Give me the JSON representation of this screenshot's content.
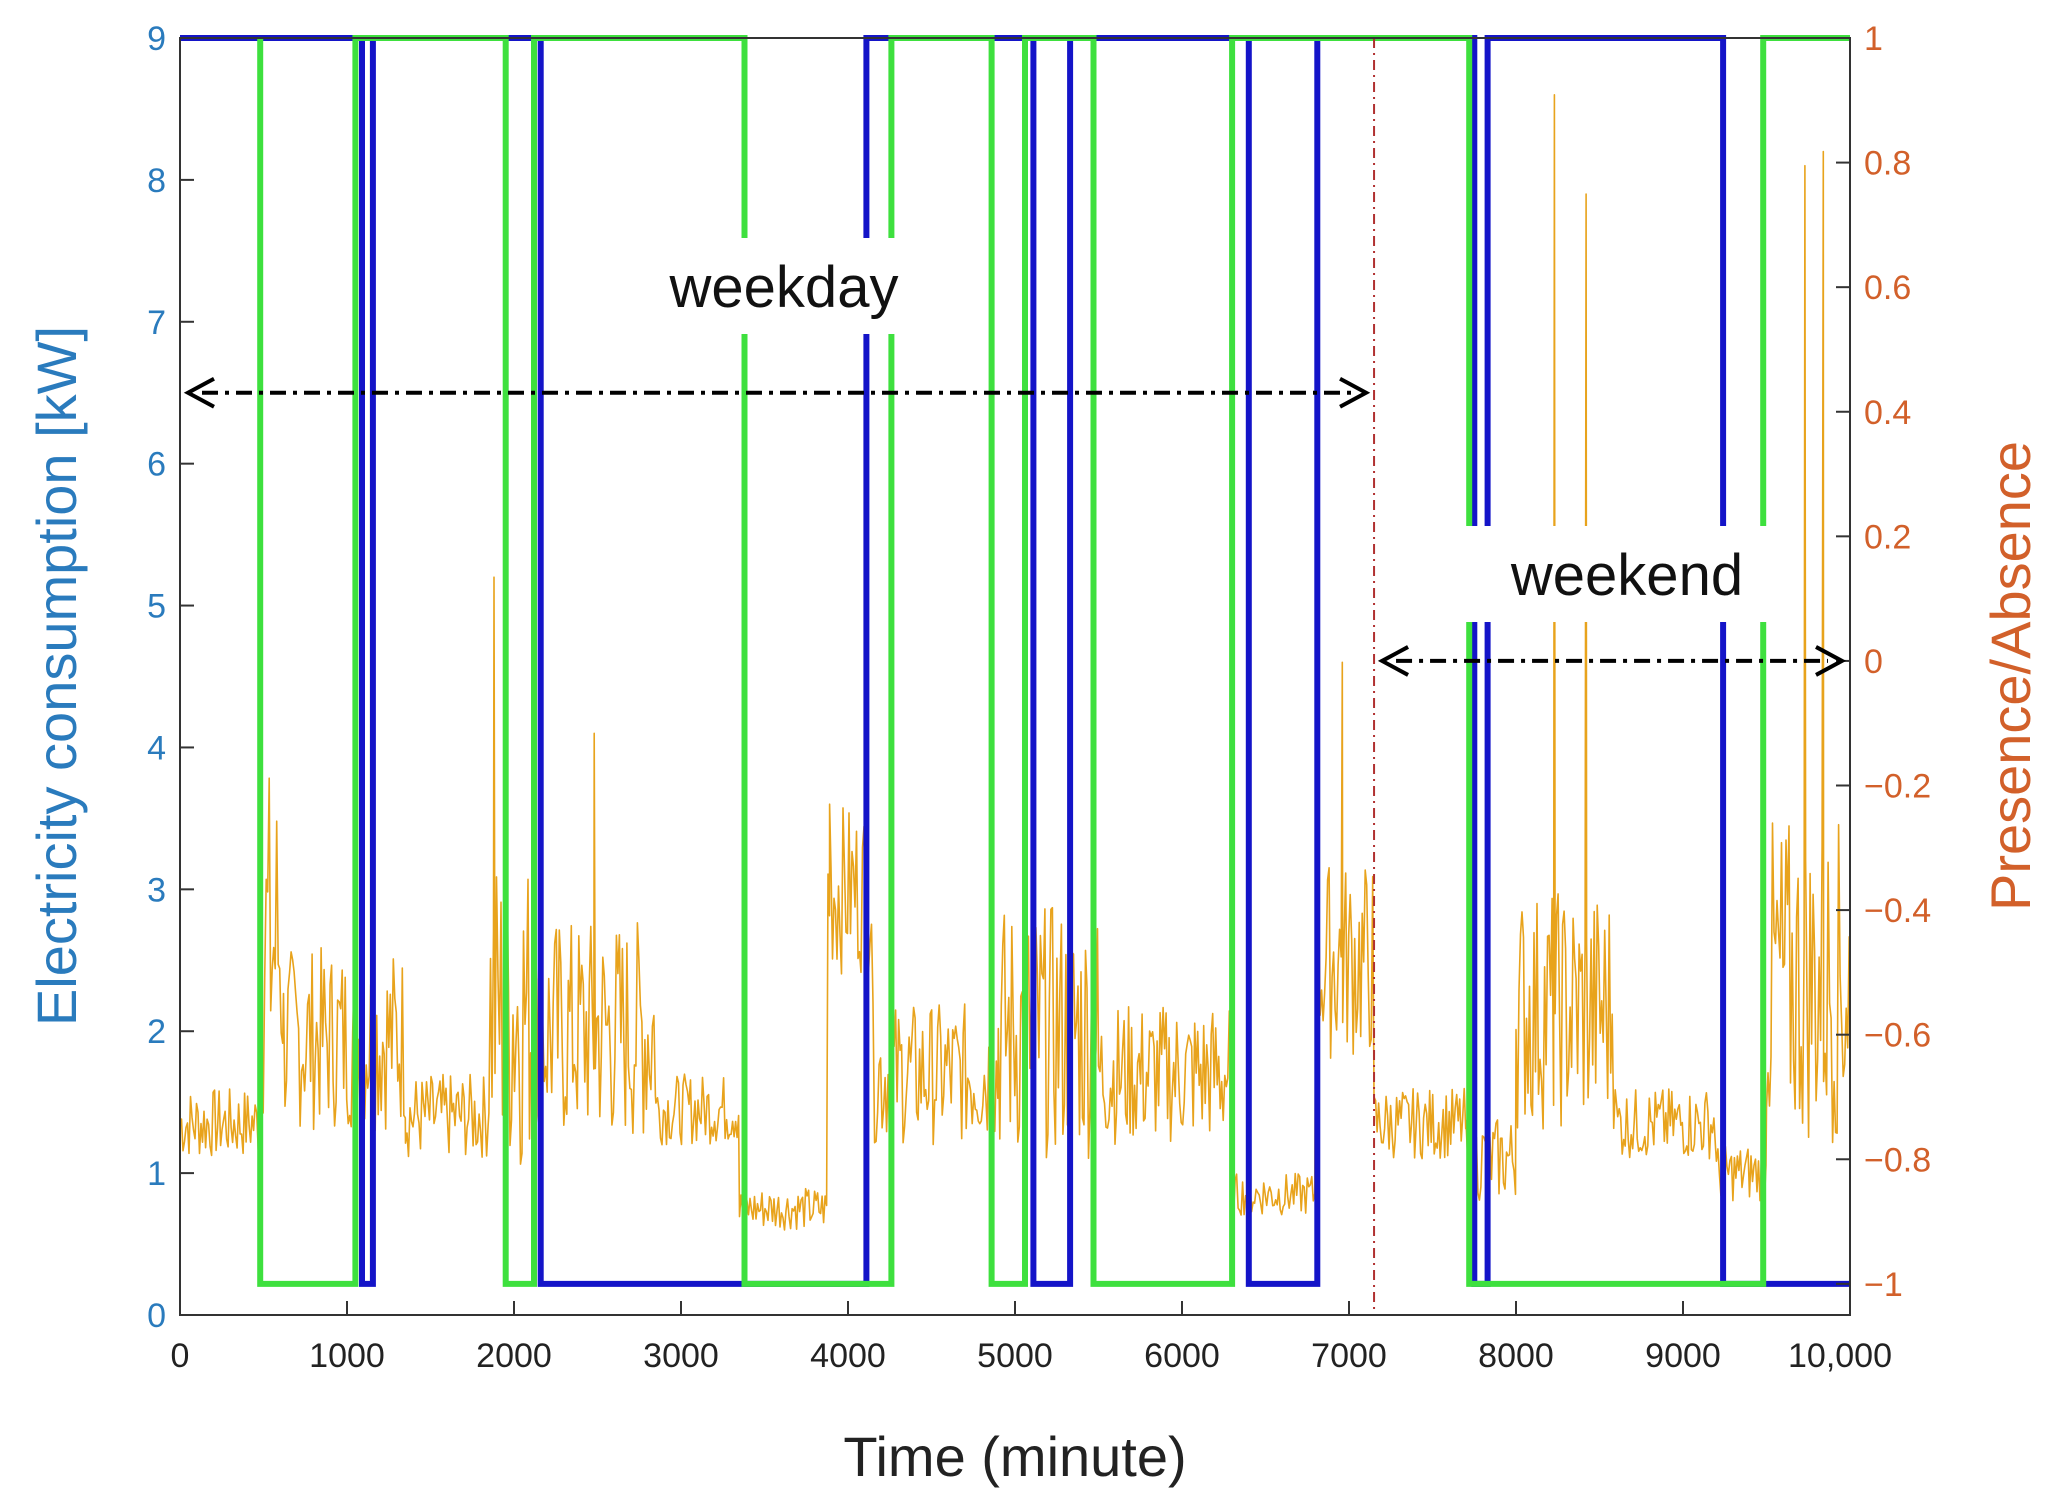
{
  "chart_data": {
    "type": "line",
    "title": "",
    "xlabel": "Time (minute)",
    "ylabel": "Electricity consumption [kW]",
    "ylabel_right": "Presence/Absence",
    "xlim": [
      0,
      10000
    ],
    "ylim": [
      0,
      9
    ],
    "ylim_right": [
      -1.05,
      1
    ],
    "x_ticks": [
      0,
      1000,
      2000,
      3000,
      4000,
      5000,
      6000,
      7000,
      8000,
      9000,
      10000
    ],
    "x_tick_labels": [
      "0",
      "1000",
      "2000",
      "3000",
      "4000",
      "5000",
      "6000",
      "7000",
      "8000",
      "9000",
      "10,000"
    ],
    "y_ticks": [
      0,
      1,
      2,
      3,
      4,
      5,
      6,
      7,
      8,
      9
    ],
    "y_tick_labels": [
      "0",
      "1",
      "2",
      "3",
      "4",
      "5",
      "6",
      "7",
      "8",
      "9"
    ],
    "y_right_ticks": [
      -1,
      -0.8,
      -0.6,
      -0.4,
      -0.2,
      0,
      0.2,
      0.4,
      0.6,
      0.8,
      1
    ],
    "y_right_tick_labels": [
      "−1",
      "−0.8",
      "−0.6",
      "−0.4",
      "−0.2",
      "0",
      "0.2",
      "0.4",
      "0.6",
      "0.8",
      "1"
    ],
    "colors": {
      "consumption": "#e8a31c",
      "presence_blue": "#1414c8",
      "presence_green": "#3ee03e",
      "left_axis": "#2a7bbd",
      "right_axis": "#d2602a",
      "divider": "#b03030"
    },
    "series": [
      {
        "name": "Electricity consumption",
        "axis": "left",
        "style": "line",
        "segments": [
          {
            "x0": 0,
            "x1": 480,
            "lo": 1.1,
            "hi": 1.6
          },
          {
            "x0": 480,
            "x1": 620,
            "lo": 1.3,
            "hi": 3.9
          },
          {
            "x0": 620,
            "x1": 1350,
            "lo": 1.3,
            "hi": 2.6
          },
          {
            "x0": 1350,
            "x1": 1850,
            "lo": 1.1,
            "hi": 1.7
          },
          {
            "x0": 1850,
            "x1": 2100,
            "lo": 1.0,
            "hi": 3.3
          },
          {
            "x0": 2100,
            "x1": 2850,
            "lo": 1.2,
            "hi": 2.8
          },
          {
            "x0": 2850,
            "x1": 3350,
            "lo": 1.2,
            "hi": 1.7
          },
          {
            "x0": 3350,
            "x1": 3880,
            "lo": 0.6,
            "hi": 0.9
          },
          {
            "x0": 3880,
            "x1": 4150,
            "lo": 2.4,
            "hi": 3.6
          },
          {
            "x0": 4150,
            "x1": 4900,
            "lo": 1.2,
            "hi": 2.2
          },
          {
            "x0": 4900,
            "x1": 5500,
            "lo": 1.1,
            "hi": 2.9
          },
          {
            "x0": 5500,
            "x1": 6300,
            "lo": 1.2,
            "hi": 2.2
          },
          {
            "x0": 6300,
            "x1": 6800,
            "lo": 0.7,
            "hi": 1.0
          },
          {
            "x0": 6800,
            "x1": 7150,
            "lo": 1.8,
            "hi": 3.2
          },
          {
            "x0": 7150,
            "x1": 7700,
            "lo": 1.1,
            "hi": 1.6
          },
          {
            "x0": 7700,
            "x1": 8000,
            "lo": 0.8,
            "hi": 1.4
          },
          {
            "x0": 8000,
            "x1": 8600,
            "lo": 1.3,
            "hi": 3.0
          },
          {
            "x0": 8600,
            "x1": 9200,
            "lo": 1.1,
            "hi": 1.6
          },
          {
            "x0": 9200,
            "x1": 9500,
            "lo": 0.8,
            "hi": 1.2
          },
          {
            "x0": 9500,
            "x1": 10000,
            "lo": 1.2,
            "hi": 3.5
          }
        ],
        "spikes": [
          {
            "x": 8230,
            "value": 8.6
          },
          {
            "x": 8420,
            "value": 7.9
          },
          {
            "x": 9730,
            "value": 8.1
          },
          {
            "x": 9840,
            "value": 8.2
          },
          {
            "x": 1880,
            "value": 5.2
          },
          {
            "x": 2480,
            "value": 4.1
          },
          {
            "x": 6960,
            "value": 4.6
          },
          {
            "x": 3890,
            "value": 3.6
          }
        ]
      },
      {
        "name": "Presence/Absence (blue)",
        "axis": "right",
        "style": "step",
        "x": [
          0,
          1090,
          1090,
          1155,
          1155,
          2160,
          2160,
          4110,
          4110,
          5110,
          5110,
          5330,
          5330,
          6400,
          6400,
          6810,
          6810,
          7750,
          7750,
          7830,
          7830,
          9240,
          9240,
          10000
        ],
        "values": [
          1,
          1,
          -1,
          -1,
          1,
          1,
          -1,
          -1,
          1,
          1,
          -1,
          -1,
          1,
          1,
          -1,
          -1,
          1,
          1,
          -1,
          -1,
          1,
          1,
          -1,
          -1
        ]
      },
      {
        "name": "Presence/Absence (green)",
        "axis": "right",
        "style": "step",
        "x": [
          480,
          480,
          1050,
          1050,
          1950,
          1950,
          2120,
          2120,
          2260,
          2260,
          3380,
          3380,
          4260,
          4260,
          4860,
          4860,
          5060,
          5060,
          5470,
          5470,
          6300,
          6300,
          7720,
          7720,
          9480,
          9480,
          9640,
          9640,
          10000
        ],
        "values": [
          1,
          -1,
          -1,
          1,
          1,
          -1,
          -1,
          1,
          1,
          1,
          1,
          -1,
          -1,
          1,
          1,
          -1,
          -1,
          1,
          1,
          -1,
          -1,
          1,
          1,
          -1,
          -1,
          1,
          1,
          1,
          1
        ]
      }
    ],
    "annotations": [
      {
        "text": "weekday",
        "x_range": [
          0,
          7150
        ],
        "y": 6.5,
        "axis": "left"
      },
      {
        "text": "weekend",
        "x_range": [
          7150,
          10000
        ],
        "y": 0.0,
        "axis": "right"
      }
    ],
    "divider_x": 7150,
    "grid": false,
    "legend": "none"
  }
}
